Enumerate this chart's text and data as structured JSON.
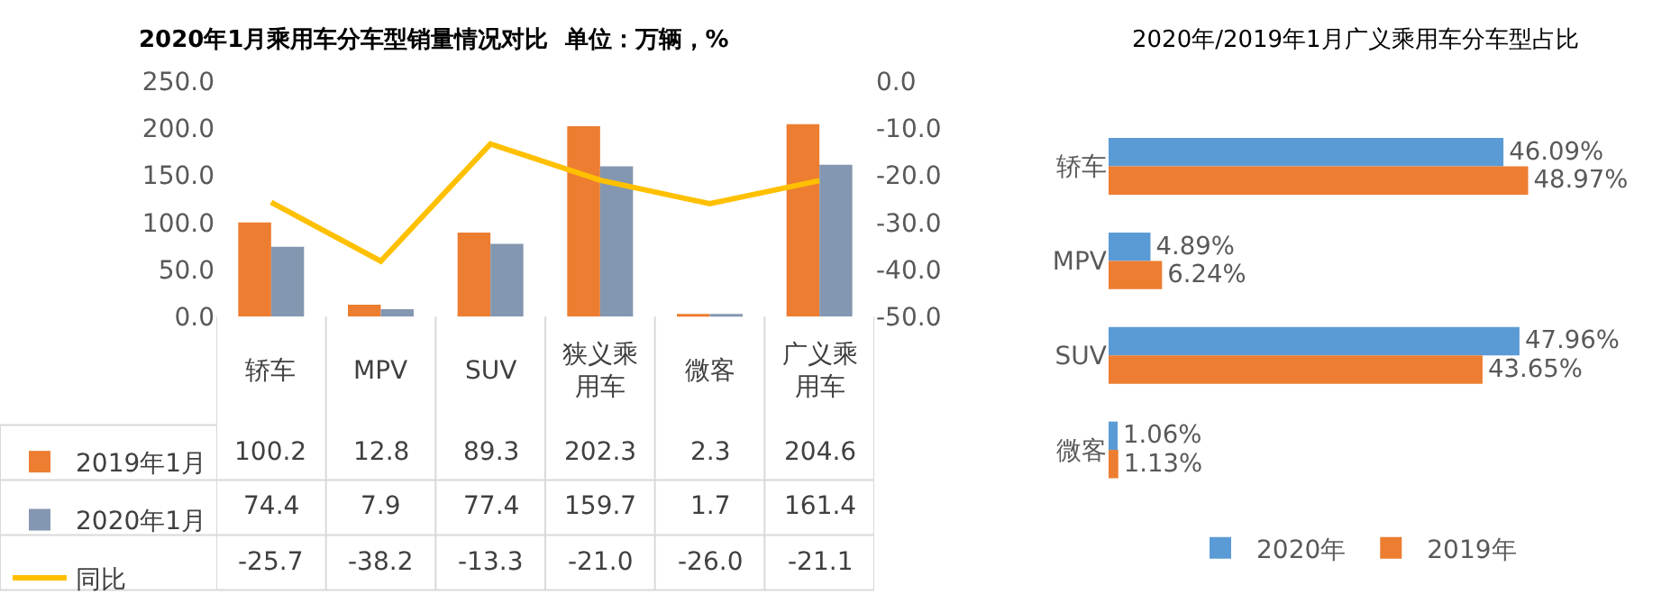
{
  "chart_data": [
    {
      "type": "bar",
      "title": "2020年1月乘用车分车型销量情况对比  单位：万辆，%",
      "categories": [
        "轿车",
        "MPV",
        "SUV",
        "狭义乘用车",
        "微客",
        "广义乘用车"
      ],
      "series": [
        {
          "name": "2019年1月",
          "color": "#ed7d31",
          "values": [
            100.2,
            12.8,
            89.3,
            202.3,
            2.3,
            204.6
          ],
          "value_labels": [
            "100.2",
            "12.8",
            "89.3",
            "202.3",
            "2.3",
            "204.6"
          ]
        },
        {
          "name": "2020年1月",
          "color": "#8497b0",
          "values": [
            74.4,
            7.9,
            77.4,
            159.7,
            1.7,
            161.4
          ],
          "value_labels": [
            "74.4",
            "7.9",
            "77.4",
            "159.7",
            "1.7",
            "161.4"
          ]
        },
        {
          "name": "同比",
          "type": "line",
          "axis": "y2",
          "color": "#ffc000",
          "values": [
            -25.7,
            -38.2,
            -13.3,
            -21.0,
            -26.0,
            -21.1
          ],
          "value_labels": [
            "-25.7",
            "-38.2",
            "-13.3",
            "-21.0",
            "-26.0",
            "-21.1"
          ]
        }
      ],
      "ylim": [
        0,
        250
      ],
      "yticks": [
        {
          "value": 0,
          "label": "0.0"
        },
        {
          "value": 50,
          "label": "50.0"
        },
        {
          "value": 100,
          "label": "100.0"
        },
        {
          "value": 150,
          "label": "150.0"
        },
        {
          "value": 200,
          "label": "200.0"
        },
        {
          "value": 250,
          "label": "250.0"
        }
      ],
      "y2lim": [
        -50,
        0
      ],
      "y2ticks": [
        {
          "value": -50,
          "label": "-50.0"
        },
        {
          "value": -40,
          "label": "-40.0"
        },
        {
          "value": -30,
          "label": "-30.0"
        },
        {
          "value": -20,
          "label": "-20.0"
        },
        {
          "value": -10,
          "label": "-10.0"
        },
        {
          "value": 0,
          "label": "0.0"
        }
      ],
      "legend": "bottom left",
      "marker": "none"
    },
    {
      "type": "bar",
      "orientation": "horizontal",
      "title": "2020年/2019年1月广义乘用车分车型占比",
      "categories": [
        "轿车",
        "MPV",
        "SUV",
        "微客"
      ],
      "series": [
        {
          "name": "2020年",
          "color": "#5b9bd5",
          "values": [
            46.09,
            4.89,
            47.96,
            1.06
          ],
          "value_labels": [
            "46.09%",
            "4.89%",
            "47.96%",
            "1.06%"
          ]
        },
        {
          "name": "2019年",
          "color": "#ed7d31",
          "values": [
            48.97,
            6.24,
            43.65,
            1.13
          ],
          "value_labels": [
            "48.97%",
            "6.24%",
            "43.65%",
            "1.13%"
          ]
        }
      ],
      "legend": "bottom"
    }
  ]
}
